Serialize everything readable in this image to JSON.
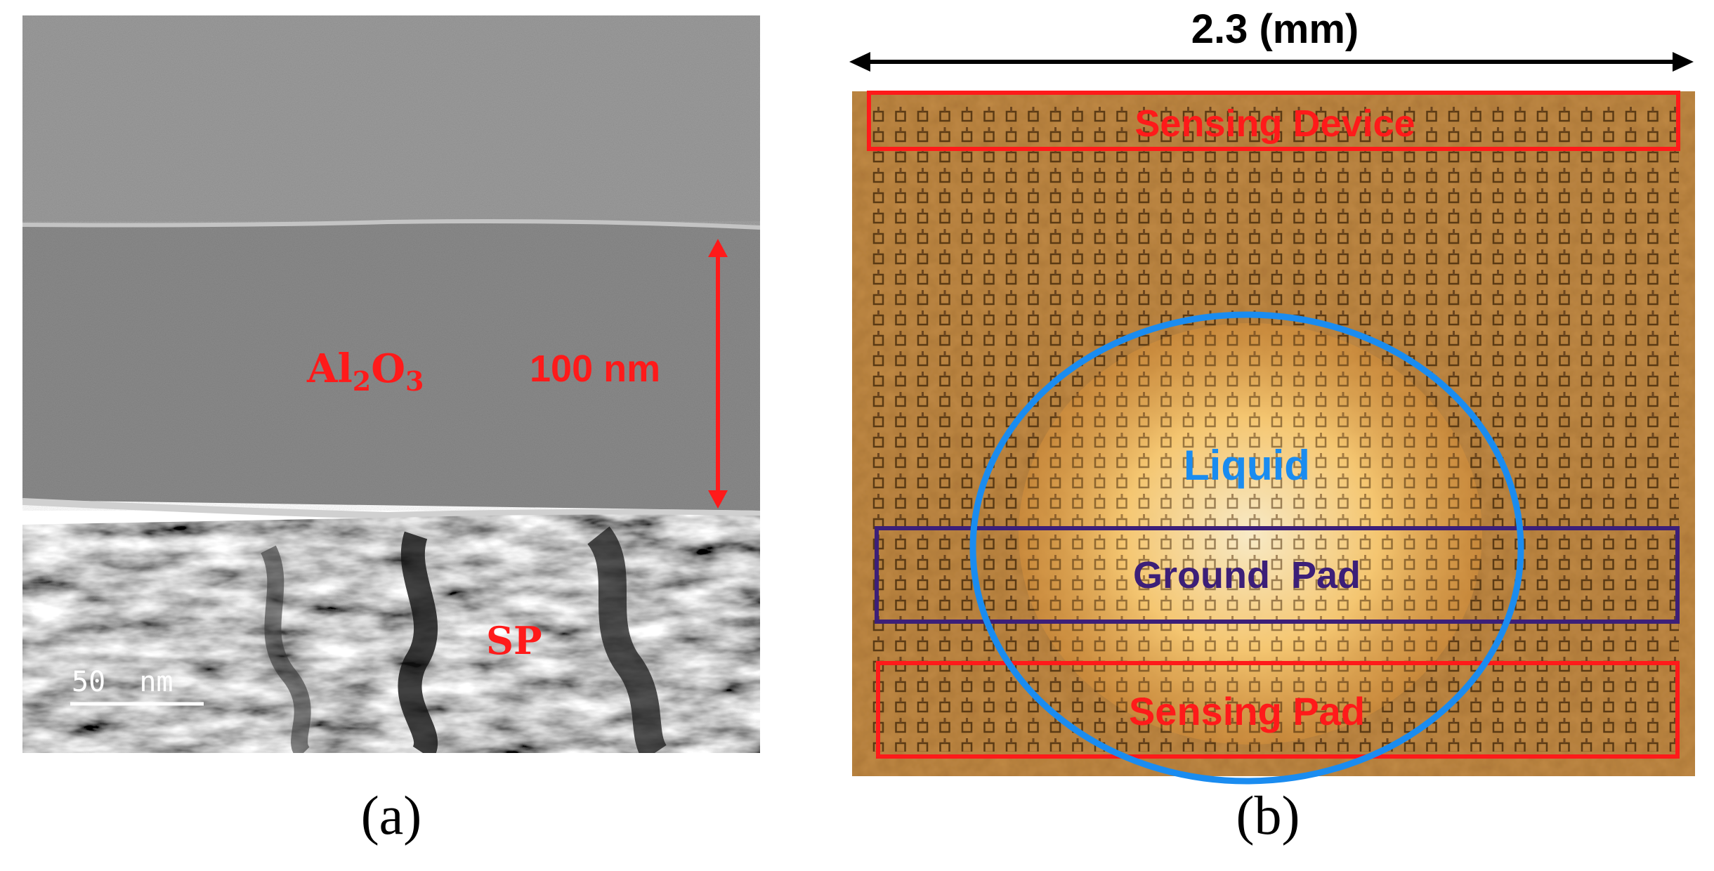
{
  "figure": {
    "panel_a": {
      "caption": "(a)",
      "layer_label_main": "Al",
      "layer_label_sub1": "2",
      "layer_label_mid": "O",
      "layer_label_sub2": "3",
      "thickness_label": "100 nm",
      "substrate_label": "SP",
      "scale_bar_label": "50  nm"
    },
    "panel_b": {
      "caption": "(b)",
      "width_label": "2.3 (mm)",
      "sensing_device_label": "Sensing Device",
      "liquid_label": "Liquid",
      "ground_pad_label": "Ground  Pad",
      "sensing_pad_label": "Sensing Pad"
    },
    "colors": {
      "red_annotation": "#ff1a1a",
      "liquid_blue": "#1a8cf0",
      "ground_purple": "#3c1f78",
      "chip_gold": "#c08a45"
    }
  }
}
